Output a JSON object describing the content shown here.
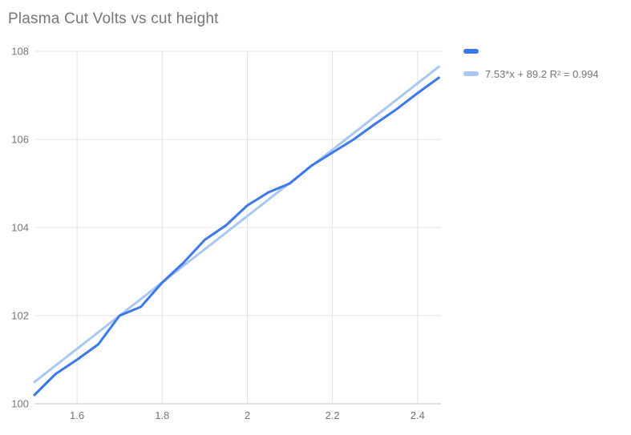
{
  "title": "Plasma Cut Volts vs cut height",
  "legend": {
    "items": [
      {
        "label": "",
        "swatch": "series"
      },
      {
        "label": "7.53*x + 89.2 R² = 0.994",
        "swatch": "trendline"
      }
    ]
  },
  "colors": {
    "series": "#3c78e8",
    "trendline": "#a9c7f5",
    "gridline": "#e3e3e3",
    "axis_line": "#c2c2c2",
    "text": "#757575",
    "background": "#ffffff"
  },
  "chart_data": {
    "type": "line",
    "title": "Plasma Cut Volts vs cut height",
    "x": [
      1.5,
      1.55,
      1.6,
      1.65,
      1.7,
      1.75,
      1.8,
      1.85,
      1.9,
      1.95,
      2.0,
      2.05,
      2.1,
      2.15,
      2.2,
      2.25,
      2.3,
      2.35,
      2.4,
      2.45
    ],
    "series": [
      {
        "name": "",
        "values": [
          100.2,
          100.68,
          101.0,
          101.35,
          102.0,
          102.2,
          102.75,
          103.2,
          103.72,
          104.05,
          104.5,
          104.8,
          105.0,
          105.4,
          105.7,
          106.0,
          106.35,
          106.68,
          107.05,
          107.4
        ]
      }
    ],
    "trendline": {
      "label": "7.53*x + 89.2 R² = 0.994",
      "slope": 7.53,
      "intercept": 89.2,
      "r2": 0.994,
      "x_start": 1.5,
      "x_end": 2.45
    },
    "xlabel": "",
    "ylabel": "",
    "xlim": [
      1.5,
      2.455
    ],
    "ylim": [
      100,
      108
    ],
    "x_ticks": [
      1.6,
      1.8,
      2.0,
      2.2,
      2.4
    ],
    "x_tick_labels": [
      "1.6",
      "1.8",
      "2",
      "2.2",
      "2.4"
    ],
    "y_ticks": [
      100,
      102,
      104,
      106,
      108
    ],
    "y_tick_labels": [
      "100",
      "102",
      "104",
      "106",
      "108"
    ],
    "grid": true,
    "legend_position": "top-right"
  }
}
